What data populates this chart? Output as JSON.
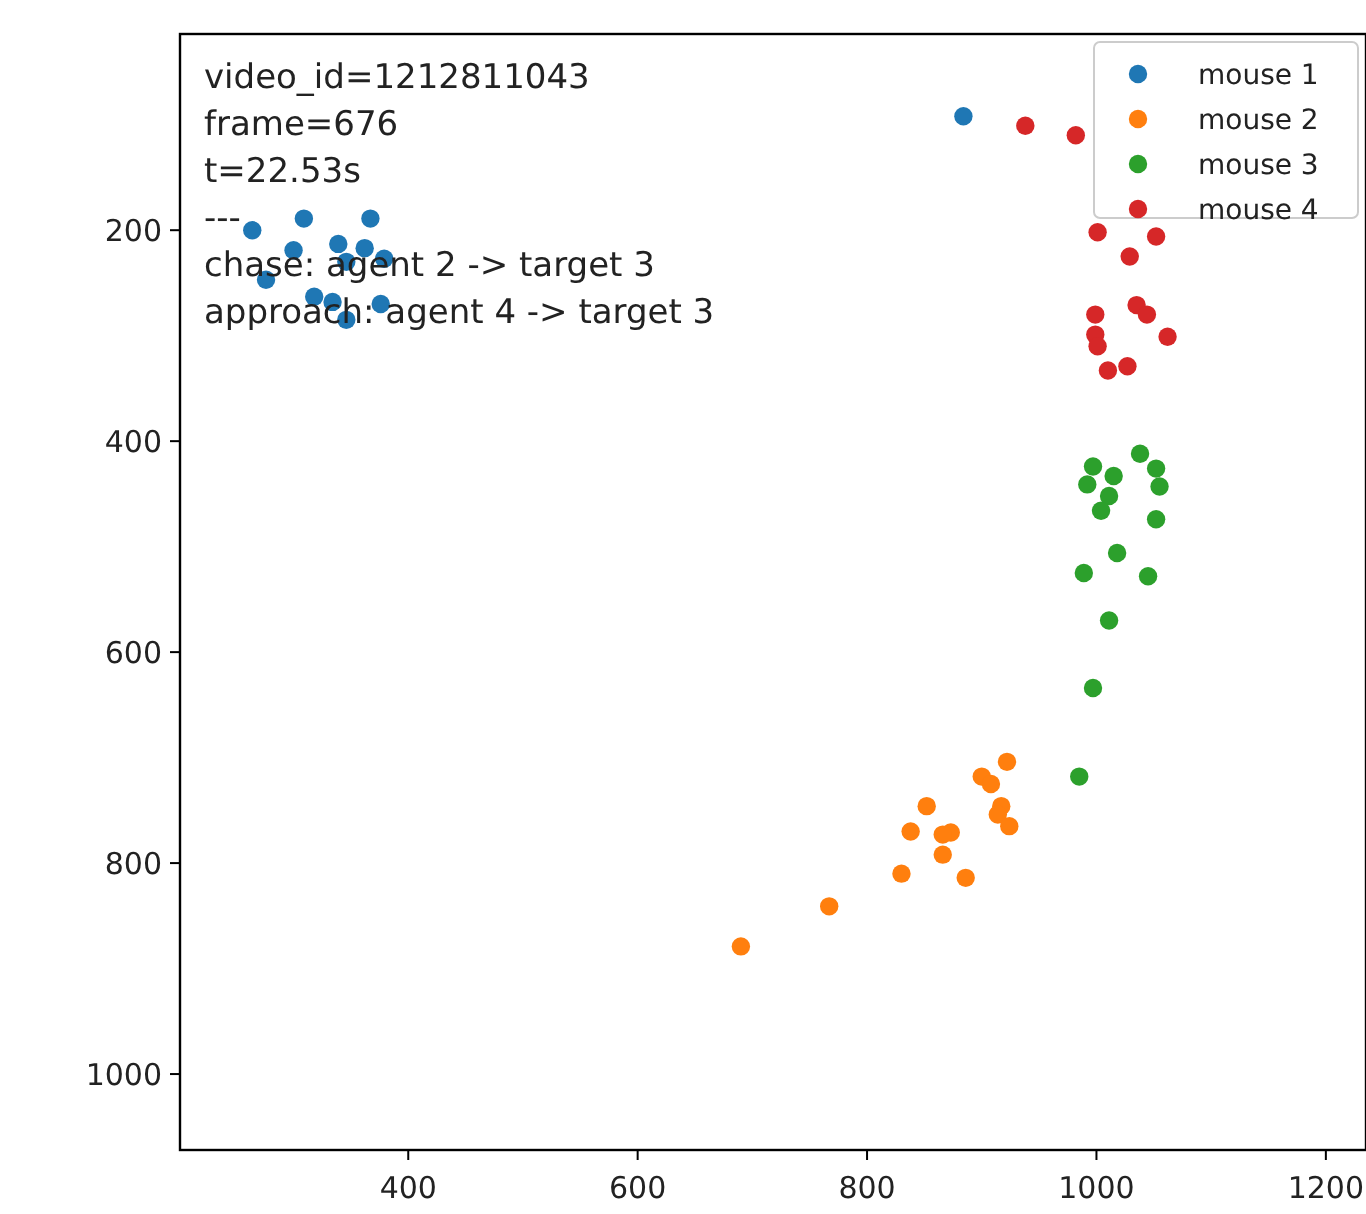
{
  "chart_data": {
    "type": "scatter",
    "xlim": [
      201,
      1235
    ],
    "ylim": [
      1072,
      14
    ],
    "xticks": [
      400,
      600,
      800,
      1000,
      1200
    ],
    "yticks": [
      200,
      400,
      600,
      800,
      1000
    ],
    "legend": "top right",
    "marker": "circle",
    "grid": false,
    "annotations": [
      "video_id=1212811043",
      "frame=676",
      "t=22.53s",
      "---",
      "chase: agent 2 -> target 3",
      "approach: agent 4 -> target 3"
    ],
    "series": [
      {
        "name": "mouse 1",
        "color": "#1f77b4",
        "x": [
          264,
          309,
          367,
          300,
          339,
          362,
          346,
          379,
          276,
          318,
          334,
          346,
          376,
          884
        ],
        "values": [
          200,
          189,
          189,
          219,
          213,
          217,
          230,
          227,
          247,
          263,
          268,
          285,
          270,
          92
        ]
      },
      {
        "name": "mouse 2",
        "color": "#ff7f0e",
        "x": [
          922,
          900,
          908,
          852,
          917,
          914,
          924,
          873,
          866,
          866,
          886,
          838,
          830,
          767,
          690
        ],
        "values": [
          704,
          718,
          725,
          746,
          746,
          754,
          765,
          771,
          773,
          792,
          814,
          770,
          810,
          841,
          879
        ]
      },
      {
        "name": "mouse 3",
        "color": "#2ca02c",
        "x": [
          1038,
          997,
          1052,
          992,
          1015,
          1055,
          1011,
          1004,
          1052,
          1018,
          989,
          1045,
          1011,
          997,
          985
        ],
        "values": [
          412,
          424,
          426,
          441,
          433,
          443,
          452,
          466,
          474,
          506,
          525,
          528,
          570,
          634,
          718
        ]
      },
      {
        "name": "mouse 4",
        "color": "#d62728",
        "x": [
          938,
          982,
          null,
          1001,
          1052,
          1029,
          999,
          1035,
          1044,
          999,
          1001,
          1062,
          1010,
          1027
        ],
        "values": [
          101,
          110,
          null,
          202,
          206,
          225,
          280,
          271,
          280,
          299,
          310,
          301,
          333,
          329
        ]
      }
    ]
  }
}
